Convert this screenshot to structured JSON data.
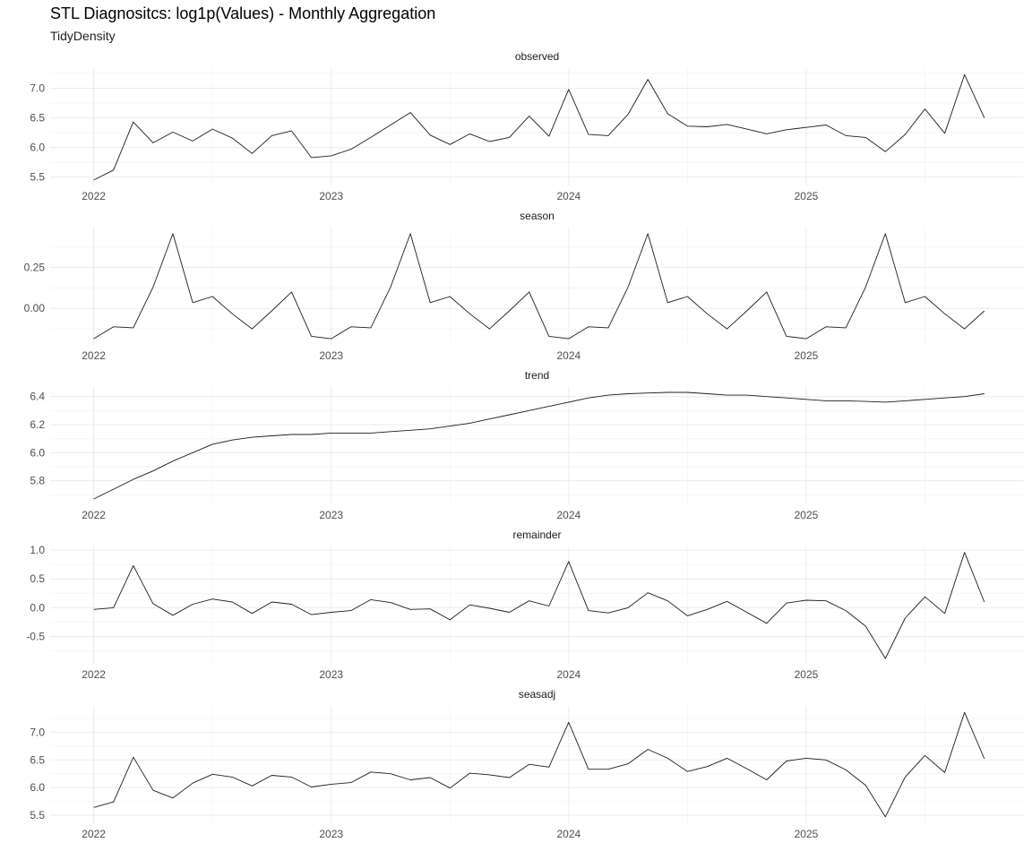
{
  "title": "STL Diagnositcs: log1p(Values) - Monthly Aggregation",
  "subtitle": "TidyDensity",
  "chart_data": {
    "type": "line",
    "layout": "faceted-vertical",
    "x_start": "2022-01",
    "x_frequency": "monthly",
    "x_ticks": [
      "2022",
      "2023",
      "2024",
      "2025"
    ],
    "grid": true,
    "line_color": "#1c1c1c",
    "facets": [
      {
        "name": "observed",
        "ylim": [
          5.45,
          7.25
        ],
        "yticks": [
          5.5,
          6.0,
          6.5,
          7.0
        ],
        "values": [
          5.45,
          5.62,
          6.43,
          6.08,
          6.26,
          6.11,
          6.31,
          6.16,
          5.9,
          6.2,
          6.28,
          5.83,
          5.86,
          5.97,
          6.17,
          6.38,
          6.59,
          6.21,
          6.05,
          6.23,
          6.1,
          6.17,
          6.53,
          6.19,
          6.98,
          6.22,
          6.2,
          6.56,
          7.15,
          6.57,
          6.36,
          6.35,
          6.39,
          6.31,
          6.23,
          6.3,
          6.34,
          6.38,
          6.2,
          6.17,
          5.93,
          6.22,
          6.65,
          6.24,
          7.23,
          6.5
        ]
      },
      {
        "name": "season",
        "ylim": [
          -0.19,
          0.46
        ],
        "yticks": [
          0.0,
          0.25
        ],
        "values": [
          -0.185,
          -0.112,
          -0.118,
          0.13,
          0.455,
          0.035,
          0.072,
          -0.033,
          -0.125,
          -0.015,
          0.1,
          -0.17,
          -0.185,
          -0.112,
          -0.118,
          0.13,
          0.455,
          0.035,
          0.072,
          -0.033,
          -0.125,
          -0.015,
          0.1,
          -0.17,
          -0.185,
          -0.112,
          -0.118,
          0.13,
          0.455,
          0.035,
          0.072,
          -0.033,
          -0.125,
          -0.015,
          0.1,
          -0.17,
          -0.185,
          -0.112,
          -0.118,
          0.13,
          0.455,
          0.035,
          0.072,
          -0.033,
          -0.125,
          -0.015
        ]
      },
      {
        "name": "trend",
        "ylim": [
          5.67,
          6.43
        ],
        "yticks": [
          5.8,
          6.0,
          6.2,
          6.4
        ],
        "values": [
          5.67,
          5.74,
          5.81,
          5.87,
          5.94,
          6.0,
          6.06,
          6.09,
          6.11,
          6.12,
          6.13,
          6.13,
          6.14,
          6.14,
          6.14,
          6.15,
          6.16,
          6.17,
          6.19,
          6.21,
          6.24,
          6.27,
          6.3,
          6.33,
          6.36,
          6.39,
          6.41,
          6.42,
          6.425,
          6.43,
          6.43,
          6.42,
          6.41,
          6.41,
          6.4,
          6.39,
          6.38,
          6.37,
          6.37,
          6.365,
          6.36,
          6.37,
          6.38,
          6.39,
          6.4,
          6.42
        ]
      },
      {
        "name": "remainder",
        "ylim": [
          -0.88,
          0.97
        ],
        "yticks": [
          -0.5,
          0.0,
          0.5,
          1.0
        ],
        "values": [
          -0.03,
          0.0,
          0.73,
          0.07,
          -0.13,
          0.06,
          0.15,
          0.1,
          -0.1,
          0.1,
          0.06,
          -0.12,
          -0.08,
          -0.05,
          0.14,
          0.09,
          -0.03,
          -0.02,
          -0.21,
          0.05,
          -0.01,
          -0.08,
          0.12,
          0.03,
          0.8,
          -0.05,
          -0.09,
          0.0,
          0.26,
          0.12,
          -0.14,
          -0.03,
          0.11,
          -0.08,
          -0.27,
          0.08,
          0.13,
          0.12,
          -0.05,
          -0.32,
          -0.88,
          -0.18,
          0.19,
          -0.1,
          0.96,
          0.1
        ]
      },
      {
        "name": "seasadj",
        "ylim": [
          5.45,
          7.38
        ],
        "yticks": [
          5.5,
          6.0,
          6.5,
          7.0
        ],
        "values": [
          5.64,
          5.74,
          6.55,
          5.95,
          5.81,
          6.08,
          6.24,
          6.19,
          6.03,
          6.22,
          6.19,
          6.01,
          6.06,
          6.09,
          6.28,
          6.25,
          6.14,
          6.18,
          5.99,
          6.26,
          6.23,
          6.18,
          6.42,
          6.37,
          7.18,
          6.33,
          6.33,
          6.43,
          6.69,
          6.53,
          6.29,
          6.38,
          6.53,
          6.34,
          6.14,
          6.48,
          6.53,
          6.5,
          6.32,
          6.04,
          5.47,
          6.19,
          6.58,
          6.27,
          7.36,
          6.52
        ]
      }
    ]
  }
}
